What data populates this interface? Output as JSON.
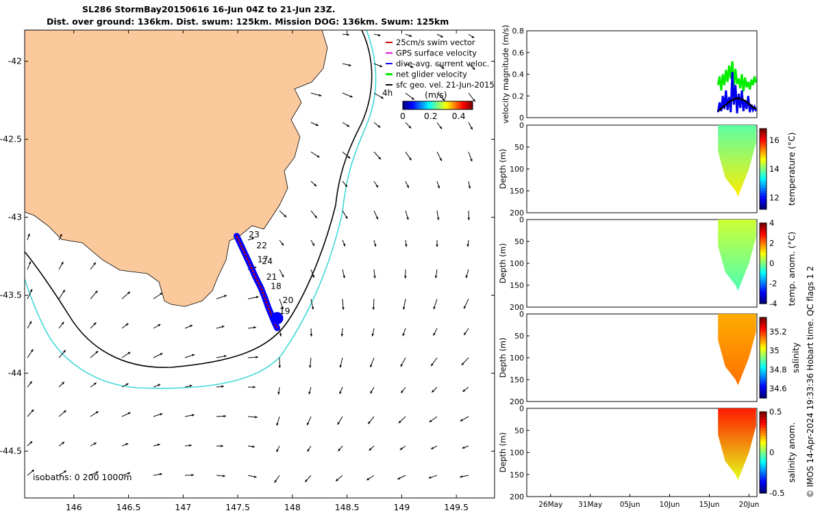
{
  "header": {
    "title_line1": "SL286 StormBay20150616 16-Jun 04Z to 21-Jun 23Z.",
    "title_line2": "Dist. over ground: 136km. Dist. swum: 125km. Mission DOG: 136km. Swum: 125km"
  },
  "footer": {
    "text": "© IMOS 14-Apr-2024 19:33:36 Hobart time. QC flags 1  2"
  },
  "colors": {
    "land": "#fbc99c",
    "track_red": "#cc0000",
    "track_blue": "#0000ff",
    "isobath_200": "#000000",
    "isobath_1000": "#3fd7d7",
    "net_velocity": "#00ee00",
    "dive_avg": "#0000ee",
    "gps_surface": "#dd00dd"
  },
  "chart_data": [
    {
      "type": "map",
      "name": "glider-track-map",
      "xticks": [
        "146",
        "146.5",
        "147",
        "147.5",
        "148",
        "148.5",
        "149",
        "149.5"
      ],
      "yticks": [
        "-42",
        "-42.5",
        "-43",
        "-43.5",
        "-44",
        "-44.5"
      ],
      "xlim": [
        145.55,
        149.85
      ],
      "ylim": [
        -44.8,
        -41.8
      ],
      "legend": [
        {
          "label": "25cm/s swim vector",
          "color": "#cc0000"
        },
        {
          "label": "GPS surface velocity",
          "color": "#dd00dd"
        },
        {
          "label": "dive-avg. current veloc.",
          "color": "#0000ee"
        },
        {
          "label": "net glider velocity",
          "color": "#00ee00"
        },
        {
          "label": "sfc geo. vel. 21-Jun-2015",
          "color": "#000000"
        }
      ],
      "vector_annotation": "4h",
      "colorbar": {
        "unit": "(m/s)",
        "ticks": [
          "0",
          "0.2",
          "0.4"
        ],
        "range": [
          0,
          0.5
        ]
      },
      "isobaths_label": "isobaths: 0   200  1000m",
      "track": [
        [
          147.49,
          -43.12
        ],
        [
          147.55,
          -43.21
        ],
        [
          147.61,
          -43.3
        ],
        [
          147.66,
          -43.38
        ],
        [
          147.71,
          -43.45
        ],
        [
          147.75,
          -43.52
        ],
        [
          147.78,
          -43.58
        ],
        [
          147.81,
          -43.63
        ],
        [
          147.84,
          -43.68
        ],
        [
          147.86,
          -43.71
        ]
      ],
      "day_labels": [
        {
          "label": "23",
          "lon": 147.6,
          "lat": -43.13
        },
        {
          "label": "22",
          "lon": 147.67,
          "lat": -43.2
        },
        {
          "label": "17",
          "lon": 147.68,
          "lat": -43.29
        },
        {
          "label": "24",
          "lon": 147.72,
          "lat": -43.3
        },
        {
          "label": "21",
          "lon": 147.76,
          "lat": -43.4
        },
        {
          "label": "18",
          "lon": 147.8,
          "lat": -43.46
        },
        {
          "label": "20",
          "lon": 147.91,
          "lat": -43.55
        },
        {
          "label": "19",
          "lon": 147.88,
          "lat": -43.62
        }
      ]
    },
    {
      "type": "line",
      "name": "velocity-magnitude",
      "ylabel": "velocity magnitude (m/s)",
      "ylim": [
        0,
        0.8
      ],
      "yticks": [
        "0",
        "0.2",
        "0.4",
        "0.6",
        "0.8"
      ],
      "xlim": [
        0,
        29
      ],
      "series": [
        {
          "name": "net glider velocity",
          "color": "#00ee00",
          "x": [
            24.1,
            24.3,
            24.5,
            24.7,
            24.9,
            25.1,
            25.3,
            25.5,
            25.7,
            25.9,
            26.1,
            26.3,
            26.5,
            26.7,
            26.9,
            27.1,
            27.3,
            27.5,
            27.7,
            27.9,
            28.1,
            28.3,
            28.5,
            28.7,
            28.9
          ],
          "y": [
            0.3,
            0.38,
            0.25,
            0.4,
            0.3,
            0.44,
            0.33,
            0.48,
            0.36,
            0.52,
            0.29,
            0.45,
            0.31,
            0.36,
            0.27,
            0.4,
            0.24,
            0.37,
            0.28,
            0.33,
            0.26,
            0.35,
            0.3,
            0.38,
            0.32
          ]
        },
        {
          "name": "dive-avg. current veloc.",
          "color": "#0000ee",
          "x": [
            24.1,
            24.3,
            24.5,
            24.7,
            24.9,
            25.1,
            25.3,
            25.5,
            25.7,
            25.9,
            26.1,
            26.3,
            26.5,
            26.7,
            26.9,
            27.1,
            27.3,
            27.5,
            27.7,
            27.9,
            28.1,
            28.3,
            28.5,
            28.7,
            28.9
          ],
          "y": [
            0.05,
            0.14,
            0.06,
            0.2,
            0.08,
            0.25,
            0.07,
            0.19,
            0.05,
            0.42,
            0.12,
            0.3,
            0.04,
            0.22,
            0.09,
            0.25,
            0.06,
            0.16,
            0.08,
            0.2,
            0.05,
            0.12,
            0.07,
            0.1,
            0.06
          ]
        },
        {
          "name": "sfc geo. vel.",
          "color": "#000000",
          "x": [
            24.1,
            24.6,
            25.1,
            25.6,
            26.1,
            26.6,
            27.1,
            27.6,
            28.1,
            28.6,
            28.9
          ],
          "y": [
            0.06,
            0.09,
            0.12,
            0.15,
            0.17,
            0.18,
            0.17,
            0.15,
            0.12,
            0.09,
            0.08
          ]
        }
      ]
    },
    {
      "type": "heatmap",
      "name": "temperature-section",
      "ylabel": "Depth (m)",
      "colorbar_label": "temperature (°C)",
      "colorbar_ticks": [
        "12",
        "14",
        "16"
      ],
      "colorbar_range": [
        11.2,
        16.8
      ],
      "yticks": [
        "0",
        "50",
        "100",
        "150",
        "200"
      ],
      "ylim": [
        200,
        0
      ],
      "depth_profile": [
        [
          24.1,
          0
        ],
        [
          24.1,
          60
        ],
        [
          25,
          120
        ],
        [
          26.3,
          150
        ],
        [
          26.6,
          163
        ],
        [
          26.9,
          150
        ],
        [
          28,
          100
        ],
        [
          28.9,
          40
        ],
        [
          28.9,
          0
        ]
      ],
      "surface_value": 13.8,
      "deep_value": 14.8
    },
    {
      "type": "heatmap",
      "name": "temperature-anomaly-section",
      "ylabel": "Depth (m)",
      "colorbar_label": "temp. anom. (°C)",
      "colorbar_ticks": [
        "4",
        "2",
        "0",
        "-2",
        "-4"
      ],
      "colorbar_range": [
        -4,
        4
      ],
      "yticks": [
        "0",
        "50",
        "100",
        "150",
        "200"
      ],
      "ylim": [
        200,
        0
      ],
      "depth_profile": [
        [
          24.1,
          0
        ],
        [
          24.1,
          60
        ],
        [
          25,
          120
        ],
        [
          26.3,
          150
        ],
        [
          26.6,
          163
        ],
        [
          26.9,
          150
        ],
        [
          28,
          100
        ],
        [
          28.9,
          40
        ],
        [
          28.9,
          0
        ]
      ],
      "surface_value": 0.6,
      "deep_value": -0.4
    },
    {
      "type": "heatmap",
      "name": "salinity-section",
      "ylabel": "Depth (m)",
      "colorbar_label": "salinity",
      "colorbar_ticks": [
        "35.2",
        "35",
        "34.8",
        "34.6"
      ],
      "colorbar_range": [
        34.5,
        35.35
      ],
      "yticks": [
        "0",
        "50",
        "100",
        "150",
        "200"
      ],
      "ylim": [
        200,
        0
      ],
      "depth_profile": [
        [
          24.1,
          0
        ],
        [
          24.1,
          60
        ],
        [
          25,
          120
        ],
        [
          26.3,
          150
        ],
        [
          26.6,
          163
        ],
        [
          26.9,
          150
        ],
        [
          28,
          100
        ],
        [
          28.9,
          40
        ],
        [
          28.9,
          0
        ]
      ],
      "surface_value": 35.1,
      "deep_value": 35.15
    },
    {
      "type": "heatmap",
      "name": "salinity-anomaly-section",
      "ylabel": "Depth (m)",
      "colorbar_label": "salinity anom.",
      "colorbar_ticks": [
        "0.5",
        "0",
        "-0.5"
      ],
      "colorbar_range": [
        -0.5,
        0.5
      ],
      "yticks": [
        "0",
        "50",
        "100",
        "150",
        "200"
      ],
      "ylim": [
        200,
        0
      ],
      "depth_profile": [
        [
          24.1,
          0
        ],
        [
          24.1,
          60
        ],
        [
          25,
          120
        ],
        [
          26.3,
          150
        ],
        [
          26.6,
          163
        ],
        [
          26.9,
          150
        ],
        [
          28,
          100
        ],
        [
          28.9,
          40
        ],
        [
          28.9,
          0
        ]
      ],
      "surface_value": 0.35,
      "deep_value": 0.1
    }
  ],
  "time_axis": {
    "ticks": [
      {
        "label": "26May",
        "day": 3
      },
      {
        "label": "31May",
        "day": 8
      },
      {
        "label": "05Jun",
        "day": 13
      },
      {
        "label": "10Jun",
        "day": 18
      },
      {
        "label": "15Jun",
        "day": 23
      },
      {
        "label": "20Jun",
        "day": 28
      }
    ],
    "range_days": [
      0,
      29
    ]
  }
}
